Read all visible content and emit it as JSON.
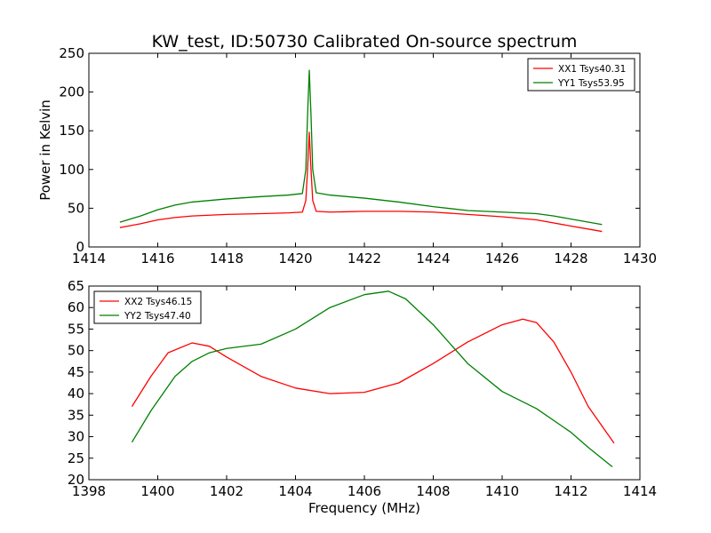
{
  "title": "KW_test, ID:50730 Calibrated On-source spectrum",
  "chart_data": [
    {
      "type": "line",
      "xlabel": "",
      "ylabel": "Power in Kelvin",
      "xlim": [
        1414,
        1430
      ],
      "ylim": [
        0,
        250
      ],
      "xticks": [
        "1414",
        "1416",
        "1418",
        "1420",
        "1422",
        "1424",
        "1426",
        "1428",
        "1430"
      ],
      "yticks": [
        "0",
        "50",
        "100",
        "150",
        "200",
        "250"
      ],
      "legend_position": "top-right",
      "grid": false,
      "series": [
        {
          "name": "XX1 Tsys40.31",
          "color": "#ff0000",
          "x": [
            1414.9,
            1415.5,
            1416,
            1416.5,
            1417,
            1418,
            1419,
            1419.8,
            1420.2,
            1420.3,
            1420.35,
            1420.4,
            1420.45,
            1420.5,
            1420.6,
            1421,
            1422,
            1423,
            1424,
            1425,
            1426,
            1427,
            1428,
            1428.9
          ],
          "values": [
            25,
            30,
            35,
            38,
            40,
            42,
            43,
            44,
            45,
            60,
            100,
            148,
            100,
            60,
            46,
            45,
            46,
            46,
            45,
            42,
            39,
            35,
            27,
            20
          ]
        },
        {
          "name": "YY1 Tsys53.95",
          "color": "#008000",
          "x": [
            1414.9,
            1415.5,
            1416,
            1416.5,
            1417,
            1418,
            1419,
            1419.8,
            1420.2,
            1420.3,
            1420.35,
            1420.4,
            1420.45,
            1420.5,
            1420.6,
            1421,
            1422,
            1423,
            1424,
            1425,
            1426,
            1427,
            1427.5,
            1428,
            1428.9
          ],
          "values": [
            32,
            40,
            48,
            54,
            58,
            62,
            65,
            67,
            69,
            100,
            170,
            228,
            170,
            100,
            70,
            67,
            63,
            58,
            52,
            47,
            45,
            43,
            40,
            36,
            29
          ]
        }
      ]
    },
    {
      "type": "line",
      "xlabel": "Frequency (MHz)",
      "ylabel": "",
      "xlim": [
        1398,
        1414
      ],
      "ylim": [
        20,
        65
      ],
      "xticks": [
        "1398",
        "1400",
        "1402",
        "1404",
        "1406",
        "1408",
        "1410",
        "1412",
        "1414"
      ],
      "yticks": [
        "20",
        "25",
        "30",
        "35",
        "40",
        "45",
        "50",
        "55",
        "60",
        "65"
      ],
      "legend_position": "top-left",
      "grid": false,
      "series": [
        {
          "name": "XX2 Tsys46.15",
          "color": "#ff0000",
          "x": [
            1399.25,
            1399.8,
            1400.3,
            1401,
            1401.5,
            1402,
            1403,
            1404,
            1405,
            1406,
            1407,
            1408,
            1409,
            1410,
            1410.6,
            1411,
            1411.5,
            1412,
            1412.5,
            1413.25
          ],
          "values": [
            37,
            44,
            49.5,
            51.8,
            51,
            48.5,
            44,
            41.3,
            40,
            40.3,
            42.5,
            47,
            52,
            56,
            57.3,
            56.5,
            52,
            45,
            37,
            28.5
          ]
        },
        {
          "name": "YY2 Tsys47.40",
          "color": "#008000",
          "x": [
            1399.25,
            1399.8,
            1400.5,
            1401,
            1401.5,
            1402,
            1403,
            1404,
            1405,
            1406,
            1406.7,
            1407.2,
            1408,
            1409,
            1410,
            1411,
            1412,
            1412.5,
            1413.2
          ],
          "values": [
            28.7,
            36,
            44,
            47.5,
            49.5,
            50.5,
            51.5,
            55,
            60,
            63,
            63.8,
            62,
            56,
            47,
            40.5,
            36.5,
            31,
            27.5,
            23
          ]
        }
      ]
    }
  ]
}
